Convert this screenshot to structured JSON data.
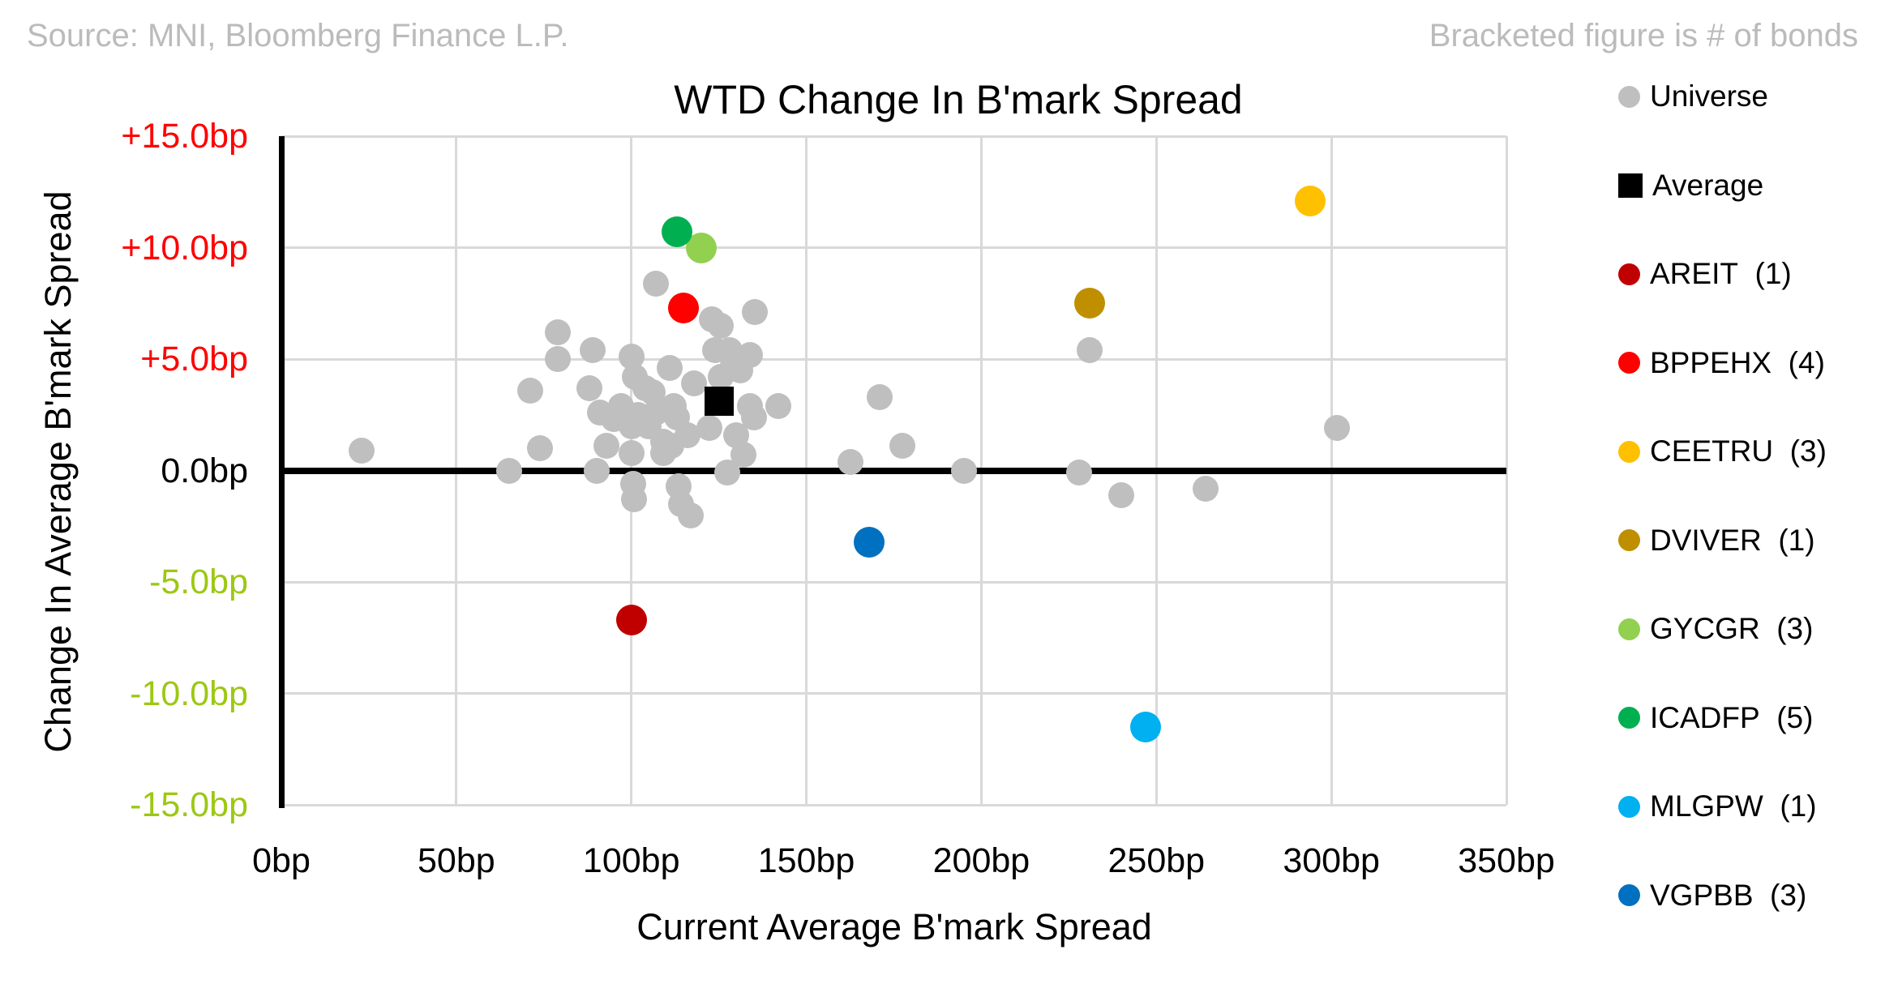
{
  "header": {
    "source_note": "Source: MNI, Bloomberg Finance L.P.",
    "bracket_note": "Bracketed figure is # of bonds"
  },
  "chart_data": {
    "type": "scatter",
    "title": "WTD Change In B'mark Spread",
    "xlabel": "Current Average B'mark Spread",
    "ylabel": "Change In Average B'mark Spread",
    "xlim": [
      0,
      350
    ],
    "ylim": [
      -15,
      15
    ],
    "grid": "on",
    "legend_position": "right",
    "x_ticks": [
      {
        "value": 0,
        "label": "0bp"
      },
      {
        "value": 50,
        "label": "50bp"
      },
      {
        "value": 100,
        "label": "100bp"
      },
      {
        "value": 150,
        "label": "150bp"
      },
      {
        "value": 200,
        "label": "200bp"
      },
      {
        "value": 250,
        "label": "250bp"
      },
      {
        "value": 300,
        "label": "300bp"
      },
      {
        "value": 350,
        "label": "350bp"
      }
    ],
    "y_ticks": [
      {
        "value": 15,
        "label": "+15.0bp",
        "color": "#ff0000"
      },
      {
        "value": 10,
        "label": "+10.0bp",
        "color": "#ff0000"
      },
      {
        "value": 5,
        "label": "+5.0bp",
        "color": "#ff0000"
      },
      {
        "value": 0,
        "label": "0.0bp",
        "color": "#000000"
      },
      {
        "value": -5,
        "label": "-5.0bp",
        "color": "#9cc813"
      },
      {
        "value": -10,
        "label": "-10.0bp",
        "color": "#9cc813"
      },
      {
        "value": -15,
        "label": "-15.0bp",
        "color": "#9cc813"
      }
    ],
    "series": [
      {
        "id": "universe",
        "name": "Universe",
        "color": "#bfbfbf",
        "marker": "circle",
        "size": 32,
        "points": [
          [
            23,
            0.9
          ],
          [
            65,
            0.0
          ],
          [
            71,
            3.6
          ],
          [
            74,
            1.0
          ],
          [
            79,
            6.2
          ],
          [
            79,
            5.0
          ],
          [
            88,
            3.7
          ],
          [
            89,
            5.4
          ],
          [
            90,
            0.0
          ],
          [
            91,
            2.6
          ],
          [
            93,
            1.1
          ],
          [
            95,
            2.3
          ],
          [
            97,
            2.9
          ],
          [
            100,
            5.1
          ],
          [
            101,
            4.2
          ],
          [
            104,
            3.7
          ],
          [
            100,
            2.0
          ],
          [
            100,
            0.8
          ],
          [
            100.5,
            -0.6
          ],
          [
            100.7,
            -1.3
          ],
          [
            102,
            2.5
          ],
          [
            105,
            2.0
          ],
          [
            106,
            3.5
          ],
          [
            107,
            8.4
          ],
          [
            107,
            2.6
          ],
          [
            111,
            4.6
          ],
          [
            109,
            1.3
          ],
          [
            108,
            2.7
          ],
          [
            111.5,
            1.1
          ],
          [
            109,
            0.8
          ],
          [
            112,
            2.9
          ],
          [
            113,
            2.4
          ],
          [
            113.5,
            -0.7
          ],
          [
            114.3,
            -1.5
          ],
          [
            116,
            1.6
          ],
          [
            117,
            -2.0
          ],
          [
            118,
            3.9
          ],
          [
            123,
            6.8
          ],
          [
            125.6,
            6.5
          ],
          [
            124,
            5.4
          ],
          [
            125.5,
            4.2
          ],
          [
            122.4,
            1.9
          ],
          [
            127.5,
            -0.1
          ],
          [
            128,
            5.4
          ],
          [
            129,
            4.7
          ],
          [
            130,
            1.6
          ],
          [
            131,
            4.5
          ],
          [
            132,
            0.7
          ],
          [
            134,
            5.2
          ],
          [
            134,
            2.9
          ],
          [
            135,
            2.4
          ],
          [
            135.3,
            7.1
          ],
          [
            142,
            2.9
          ],
          [
            162.5,
            0.4
          ],
          [
            171,
            3.3
          ],
          [
            177.5,
            1.1
          ],
          [
            195,
            0.0
          ],
          [
            228,
            -0.1
          ],
          [
            231,
            5.4
          ],
          [
            240,
            -1.1
          ],
          [
            264,
            -0.8
          ],
          [
            301.5,
            1.9
          ]
        ]
      },
      {
        "id": "average",
        "name": "Average",
        "color": "#000000",
        "marker": "square",
        "size": 36,
        "points": [
          [
            125,
            3.1
          ]
        ]
      },
      {
        "id": "areit",
        "name": "AREIT",
        "count": "(1)",
        "color": "#c00000",
        "marker": "circle",
        "size": 38,
        "points": [
          [
            100,
            -6.7
          ]
        ]
      },
      {
        "id": "bppehx",
        "name": "BPPEHX",
        "count": "(4)",
        "color": "#ff0000",
        "marker": "circle",
        "size": 38,
        "points": [
          [
            115,
            7.3
          ]
        ]
      },
      {
        "id": "ceetru",
        "name": "CEETRU",
        "count": "(3)",
        "color": "#ffc000",
        "marker": "circle",
        "size": 38,
        "points": [
          [
            294,
            12.1
          ]
        ]
      },
      {
        "id": "dviver",
        "name": "DVIVER",
        "count": "(1)",
        "color": "#bf8f00",
        "marker": "circle",
        "size": 38,
        "points": [
          [
            231,
            7.5
          ]
        ]
      },
      {
        "id": "gycgr",
        "name": "GYCGR",
        "count": "(3)",
        "color": "#92d050",
        "marker": "circle",
        "size": 38,
        "points": [
          [
            120,
            10.0
          ]
        ]
      },
      {
        "id": "icadfp",
        "name": "ICADFP",
        "count": "(5)",
        "color": "#00b050",
        "marker": "circle",
        "size": 38,
        "points": [
          [
            113,
            10.7
          ]
        ]
      },
      {
        "id": "mlgpw",
        "name": "MLGPW",
        "count": "(1)",
        "color": "#00b0f0",
        "marker": "circle",
        "size": 38,
        "points": [
          [
            247,
            -11.5
          ]
        ]
      },
      {
        "id": "vgpbb",
        "name": "VGPBB",
        "count": "(3)",
        "color": "#0070c0",
        "marker": "circle",
        "size": 38,
        "points": [
          [
            168,
            -3.2
          ]
        ]
      }
    ],
    "legend": [
      {
        "series": "universe",
        "label": "Universe",
        "count": "",
        "color": "#bfbfbf",
        "marker": "circle"
      },
      {
        "series": "average",
        "label": "Average",
        "count": "",
        "color": "#000000",
        "marker": "square"
      },
      {
        "series": "areit",
        "label": "AREIT",
        "count": "(1)",
        "color": "#c00000",
        "marker": "circle"
      },
      {
        "series": "bppehx",
        "label": "BPPEHX",
        "count": "(4)",
        "color": "#ff0000",
        "marker": "circle"
      },
      {
        "series": "ceetru",
        "label": "CEETRU",
        "count": "(3)",
        "color": "#ffc000",
        "marker": "circle"
      },
      {
        "series": "dviver",
        "label": "DVIVER",
        "count": "(1)",
        "color": "#bf8f00",
        "marker": "circle"
      },
      {
        "series": "gycgr",
        "label": "GYCGR",
        "count": "(3)",
        "color": "#92d050",
        "marker": "circle"
      },
      {
        "series": "icadfp",
        "label": "ICADFP",
        "count": "(5)",
        "color": "#00b050",
        "marker": "circle"
      },
      {
        "series": "mlgpw",
        "label": "MLGPW",
        "count": "(1)",
        "color": "#00b0f0",
        "marker": "circle"
      },
      {
        "series": "vgpbb",
        "label": "VGPBB",
        "count": "(3)",
        "color": "#0070c0",
        "marker": "circle"
      }
    ]
  }
}
